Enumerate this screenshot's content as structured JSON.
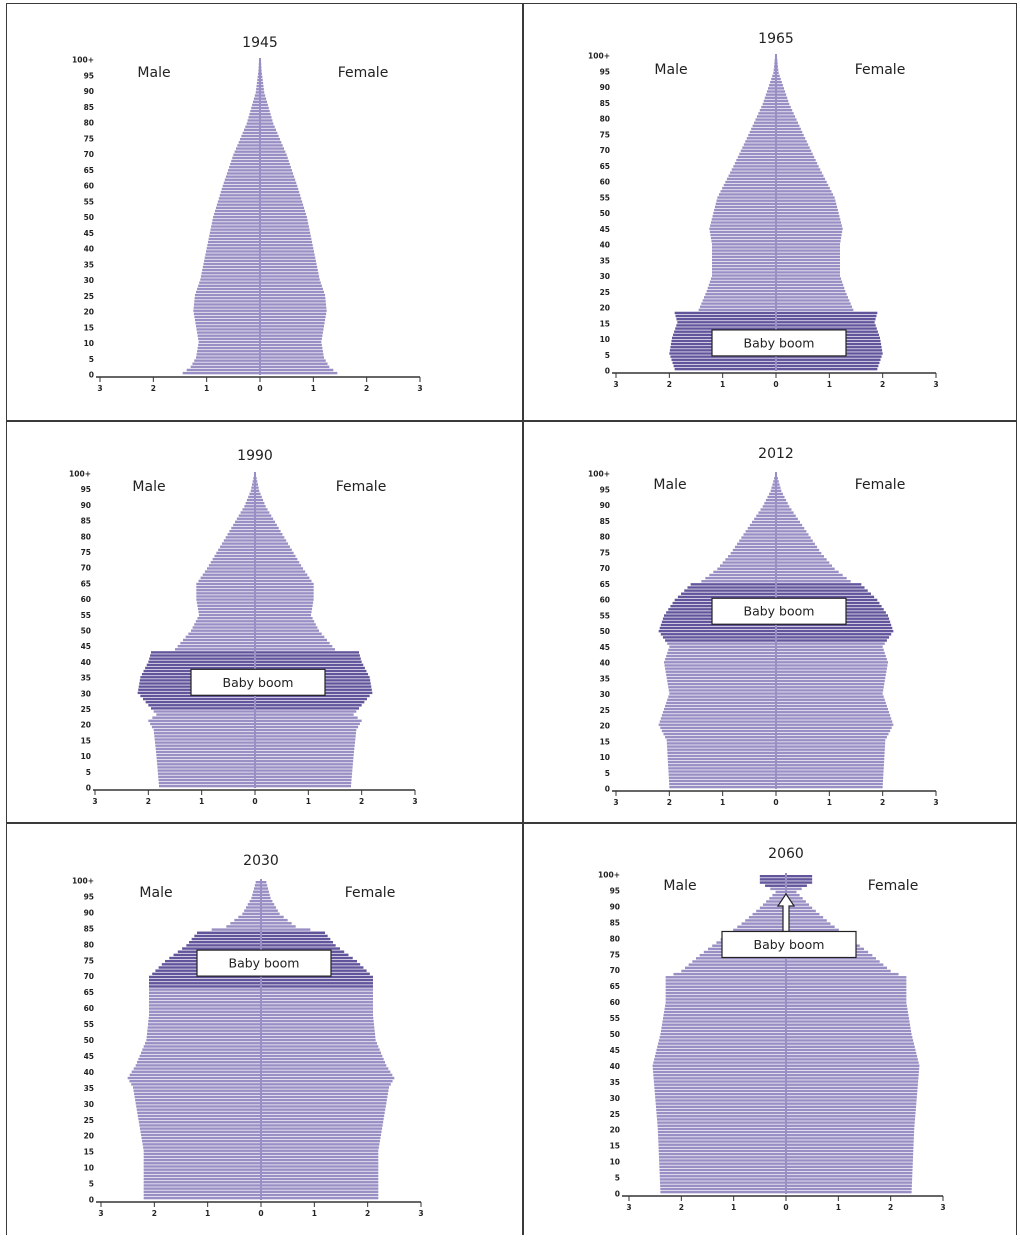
{
  "figure": {
    "sex_labels": {
      "male": "Male",
      "female": "Female"
    },
    "annotation_text": "Baby boom",
    "colors": {
      "bar": "#9a8fc4",
      "bar_highlight": "#62559c",
      "axis": "#333333",
      "frame": "#3a3a3a",
      "stripe": "#ffffff"
    }
  },
  "chart_data": [
    {
      "type": "bar",
      "title": "1945",
      "age_ticks": [
        "0",
        "5",
        "10",
        "15",
        "20",
        "25",
        "30",
        "35",
        "40",
        "45",
        "50",
        "55",
        "60",
        "65",
        "70",
        "75",
        "80",
        "85",
        "90",
        "95",
        "100+"
      ],
      "x_ticks": [
        "3",
        "2",
        "1",
        "0",
        "1",
        "2",
        "3"
      ],
      "xlim": [
        -3,
        3
      ],
      "age_range": [
        0,
        100
      ],
      "baby_boom": null,
      "profile": [
        [
          0,
          1.45
        ],
        [
          2,
          1.3
        ],
        [
          5,
          1.2
        ],
        [
          10,
          1.15
        ],
        [
          15,
          1.2
        ],
        [
          20,
          1.25
        ],
        [
          25,
          1.22
        ],
        [
          30,
          1.12
        ],
        [
          40,
          1.0
        ],
        [
          50,
          0.88
        ],
        [
          60,
          0.7
        ],
        [
          70,
          0.5
        ],
        [
          80,
          0.25
        ],
        [
          90,
          0.08
        ],
        [
          97,
          0.03
        ],
        [
          100,
          0.02
        ]
      ]
    },
    {
      "type": "bar",
      "title": "1965",
      "age_ticks": [
        "0",
        "5",
        "10",
        "15",
        "20",
        "25",
        "30",
        "35",
        "40",
        "45",
        "50",
        "55",
        "60",
        "65",
        "70",
        "75",
        "80",
        "85",
        "90",
        "95",
        "100+"
      ],
      "x_ticks": [
        "3",
        "2",
        "1",
        "0",
        "1",
        "2",
        "3"
      ],
      "xlim": [
        -3,
        3
      ],
      "age_range": [
        0,
        100
      ],
      "baby_boom": {
        "from": 0,
        "to": 18,
        "label_age": 9
      },
      "profile": [
        [
          0,
          1.9
        ],
        [
          5,
          2.0
        ],
        [
          10,
          1.95
        ],
        [
          15,
          1.85
        ],
        [
          18,
          1.9
        ],
        [
          19,
          1.45
        ],
        [
          25,
          1.3
        ],
        [
          30,
          1.2
        ],
        [
          40,
          1.2
        ],
        [
          45,
          1.25
        ],
        [
          55,
          1.1
        ],
        [
          65,
          0.8
        ],
        [
          75,
          0.52
        ],
        [
          85,
          0.25
        ],
        [
          95,
          0.05
        ],
        [
          100,
          0.02
        ]
      ]
    },
    {
      "type": "bar",
      "title": "1990",
      "age_ticks": [
        "0",
        "5",
        "10",
        "15",
        "20",
        "25",
        "30",
        "35",
        "40",
        "45",
        "50",
        "55",
        "60",
        "65",
        "70",
        "75",
        "80",
        "85",
        "90",
        "95",
        "100+"
      ],
      "x_ticks": [
        "3",
        "2",
        "1",
        "0",
        "1",
        "2",
        "3"
      ],
      "xlim": [
        -3,
        3
      ],
      "age_range": [
        0,
        100
      ],
      "baby_boom": {
        "from": 25,
        "to": 43,
        "label_age": 34
      },
      "profile": [
        [
          0,
          1.8
        ],
        [
          10,
          1.85
        ],
        [
          18,
          1.9
        ],
        [
          21,
          2.0
        ],
        [
          23,
          1.85
        ],
        [
          26,
          2.0
        ],
        [
          30,
          2.2
        ],
        [
          35,
          2.15
        ],
        [
          40,
          2.0
        ],
        [
          43,
          1.95
        ],
        [
          44,
          1.5
        ],
        [
          50,
          1.2
        ],
        [
          55,
          1.05
        ],
        [
          60,
          1.1
        ],
        [
          65,
          1.1
        ],
        [
          70,
          0.9
        ],
        [
          80,
          0.55
        ],
        [
          90,
          0.2
        ],
        [
          95,
          0.08
        ],
        [
          100,
          0.02
        ]
      ]
    },
    {
      "type": "bar",
      "title": "2012",
      "age_ticks": [
        "0",
        "5",
        "10",
        "15",
        "20",
        "25",
        "30",
        "35",
        "40",
        "45",
        "50",
        "55",
        "60",
        "65",
        "70",
        "75",
        "80",
        "85",
        "90",
        "95",
        "100+"
      ],
      "x_ticks": [
        "3",
        "2",
        "1",
        "0",
        "1",
        "2",
        "3"
      ],
      "xlim": [
        -3,
        3
      ],
      "age_range": [
        0,
        100
      ],
      "baby_boom": {
        "from": 47,
        "to": 65,
        "label_age": 57
      },
      "profile": [
        [
          0,
          2.0
        ],
        [
          15,
          2.05
        ],
        [
          20,
          2.2
        ],
        [
          25,
          2.1
        ],
        [
          30,
          2.0
        ],
        [
          35,
          2.05
        ],
        [
          40,
          2.1
        ],
        [
          45,
          2.0
        ],
        [
          50,
          2.2
        ],
        [
          55,
          2.1
        ],
        [
          60,
          1.9
        ],
        [
          65,
          1.6
        ],
        [
          66,
          1.4
        ],
        [
          70,
          1.1
        ],
        [
          75,
          0.85
        ],
        [
          80,
          0.65
        ],
        [
          85,
          0.45
        ],
        [
          90,
          0.25
        ],
        [
          95,
          0.1
        ],
        [
          100,
          0.02
        ]
      ]
    },
    {
      "type": "bar",
      "title": "2030",
      "age_ticks": [
        "0",
        "5",
        "10",
        "15",
        "20",
        "25",
        "30",
        "35",
        "40",
        "45",
        "50",
        "55",
        "60",
        "65",
        "70",
        "75",
        "80",
        "85",
        "90",
        "95",
        "100+"
      ],
      "x_ticks": [
        "3",
        "2",
        "1",
        "0",
        "1",
        "2",
        "3"
      ],
      "xlim": [
        -3,
        3
      ],
      "age_range": [
        0,
        100
      ],
      "baby_boom": {
        "from": 67,
        "to": 84,
        "label_age": 75
      },
      "profile": [
        [
          0,
          2.2
        ],
        [
          15,
          2.2
        ],
        [
          20,
          2.25
        ],
        [
          25,
          2.3
        ],
        [
          30,
          2.35
        ],
        [
          35,
          2.4
        ],
        [
          38,
          2.5
        ],
        [
          42,
          2.35
        ],
        [
          50,
          2.15
        ],
        [
          58,
          2.1
        ],
        [
          65,
          2.1
        ],
        [
          70,
          2.1
        ],
        [
          75,
          1.8
        ],
        [
          80,
          1.4
        ],
        [
          84,
          1.2
        ],
        [
          86,
          0.65
        ],
        [
          90,
          0.35
        ],
        [
          95,
          0.18
        ],
        [
          100,
          0.1
        ]
      ]
    },
    {
      "type": "bar",
      "title": "2060",
      "age_ticks": [
        "0",
        "5",
        "10",
        "15",
        "20",
        "25",
        "30",
        "35",
        "40",
        "45",
        "50",
        "55",
        "60",
        "65",
        "70",
        "75",
        "80",
        "85",
        "90",
        "95",
        "100+"
      ],
      "x_ticks": [
        "3",
        "2",
        "1",
        "0",
        "1",
        "2",
        "3"
      ],
      "xlim": [
        -3,
        3
      ],
      "age_range": [
        0,
        100
      ],
      "baby_boom": {
        "from": 97,
        "to": 100,
        "label_age": 79,
        "arrow": true
      },
      "profile": [
        [
          0,
          2.4
        ],
        [
          20,
          2.45
        ],
        [
          30,
          2.5
        ],
        [
          40,
          2.55
        ],
        [
          50,
          2.4
        ],
        [
          60,
          2.3
        ],
        [
          68,
          2.3
        ],
        [
          70,
          2.0
        ],
        [
          75,
          1.65
        ],
        [
          80,
          1.25
        ],
        [
          85,
          0.85
        ],
        [
          90,
          0.5
        ],
        [
          95,
          0.2
        ],
        [
          98,
          0.5
        ],
        [
          100,
          0.5
        ]
      ]
    }
  ]
}
